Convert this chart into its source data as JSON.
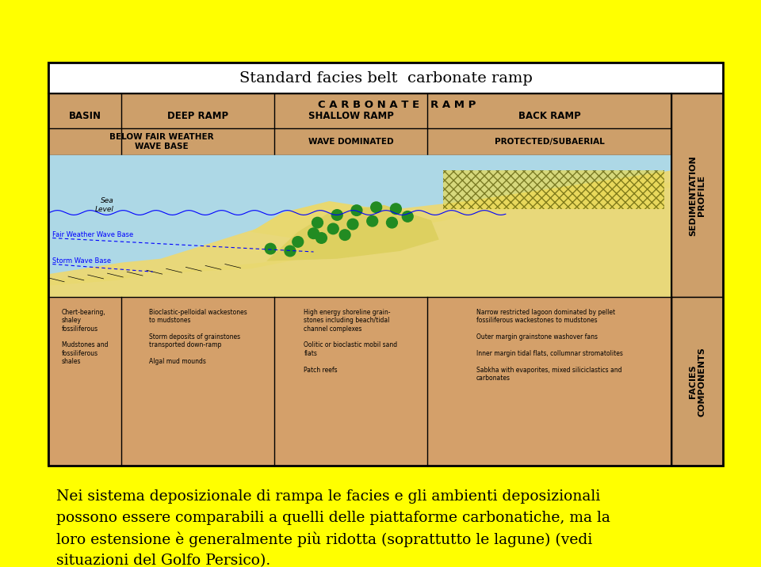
{
  "bg_color": "#ffff00",
  "outer_box_color": "#ffffff",
  "title": "Standard facies belt  carbonate ramp",
  "title_fontsize": 14,
  "header_bg": "#d4a06a",
  "diagram_bg": "#add8e6",
  "facies_bg": "#d4a06a",
  "carbonate_ramp_label": "C A R B O N A T E   R A M P",
  "columns": [
    "BASIN",
    "DEEP RAMP",
    "SHALLOW RAMP",
    "BACK RAMP"
  ],
  "row2_labels": [
    "BELOW FAIR WEATHER\nWAVE BASE",
    "WAVE DOMINATED",
    "PROTECTED/SUBAERIAL"
  ],
  "right_label_top": "SEDIMENTATION\nPROFILE",
  "right_label_bottom": "FACIES\nCOMPONENTS",
  "facies_text": [
    "Chert-bearing,\nshaley\nfossiliferous\n\nMudstones and\nfossiliferous\nshales",
    "Bioclastic-pelloidal wackestones\nto mudstones\n\nStorm deposits of grainstones\ntransported down-ramp\n\nAlgal mud mounds",
    "High energy shoreline grain-\nstones including beach/tidal\nchannel complexes\n\nOolitic or bioclastic mobil sand\nflats\n\nPatch reefs",
    "Narrow restricted lagoon dominated by pellet\nfossiliferous wackestones to mudstones\n\nOuter margin grainstone washover fans\n\nInner margin tidal flats, collumnar stromatolites\n\nSabkha with evaporites, mixed siliciclastics and\ncarbonates"
  ],
  "caption_line1": "Nei sistema deposizionale di rampa le facies e gli ambienti deposizionali",
  "caption_line2": "possono essere comparabili a quelli delle piattaforme carbonatiche, ma la",
  "caption_line3": "loro estensione è generalmente più ridotta (soprattutto le lagune) (vedi",
  "caption_line4": "situazioni del Golfo Persico).",
  "caption_fontsize": 13.5,
  "sea_level_label": "Sea\nLevel",
  "fair_weather_label": "Fair Weather Wave Base",
  "storm_wave_label": "Storm Wave Base"
}
